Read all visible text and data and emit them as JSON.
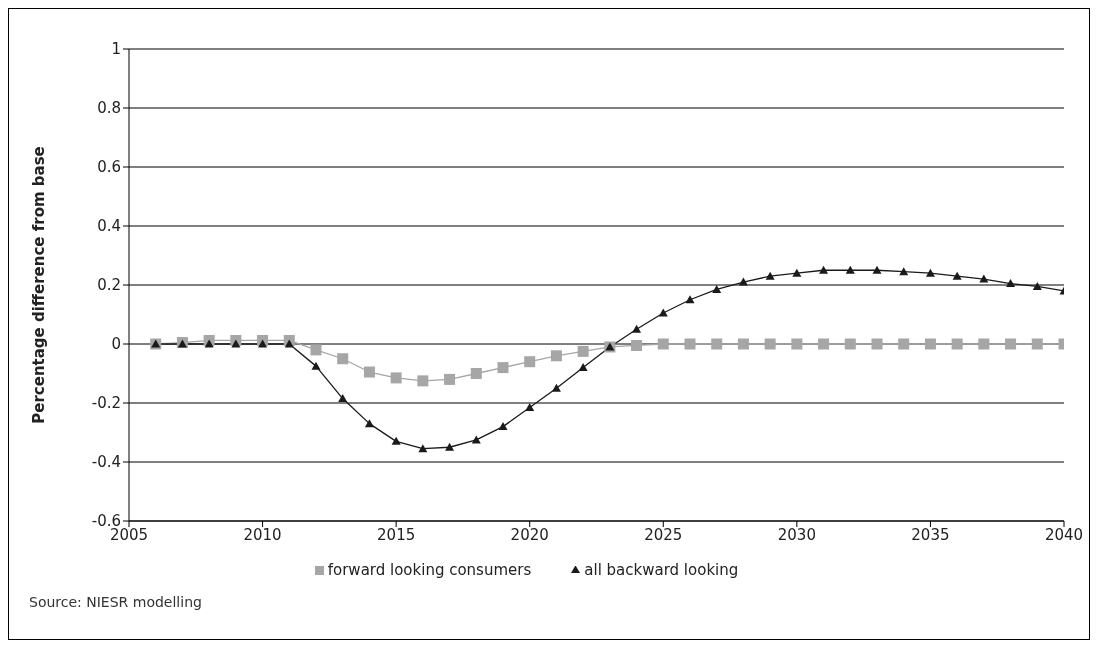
{
  "chart_data": {
    "type": "line",
    "ylabel": "Percentage difference from base",
    "x": [
      2006,
      2007,
      2008,
      2009,
      2010,
      2011,
      2012,
      2013,
      2014,
      2015,
      2016,
      2017,
      2018,
      2019,
      2020,
      2021,
      2022,
      2023,
      2024,
      2025,
      2026,
      2027,
      2028,
      2029,
      2030,
      2031,
      2032,
      2033,
      2034,
      2035,
      2036,
      2037,
      2038,
      2039,
      2040
    ],
    "series": [
      {
        "name": "forward looking consumers",
        "color": "#a6a6a6",
        "marker": "square",
        "values": [
          0,
          0.005,
          0.012,
          0.012,
          0.012,
          0.012,
          -0.02,
          -0.05,
          -0.095,
          -0.115,
          -0.125,
          -0.12,
          -0.1,
          -0.08,
          -0.06,
          -0.04,
          -0.025,
          -0.01,
          -0.005,
          0,
          0,
          0,
          0,
          0,
          0,
          0,
          0,
          0,
          0,
          0,
          0,
          0,
          0,
          0,
          0
        ]
      },
      {
        "name": "all backward looking",
        "color": "#1a1a1a",
        "marker": "triangle",
        "values": [
          0,
          0,
          0,
          0,
          0,
          0,
          -0.075,
          -0.185,
          -0.27,
          -0.33,
          -0.355,
          -0.35,
          -0.325,
          -0.28,
          -0.215,
          -0.15,
          -0.08,
          -0.01,
          0.05,
          0.105,
          0.15,
          0.185,
          0.21,
          0.23,
          0.24,
          0.25,
          0.25,
          0.25,
          0.245,
          0.24,
          0.23,
          0.22,
          0.205,
          0.195,
          0.18
        ]
      }
    ],
    "xlim": [
      2005,
      2040
    ],
    "xticks": [
      2005,
      2010,
      2015,
      2020,
      2025,
      2030,
      2035,
      2040
    ],
    "ylim": [
      -0.6,
      1
    ],
    "yticks": [
      -0.6,
      -0.4,
      -0.2,
      0,
      0.2,
      0.4,
      0.6,
      0.8,
      1
    ],
    "grid": "y",
    "legend": "bottom",
    "line_style": "solid",
    "annotations": [
      "Source: NIESR modelling"
    ]
  }
}
